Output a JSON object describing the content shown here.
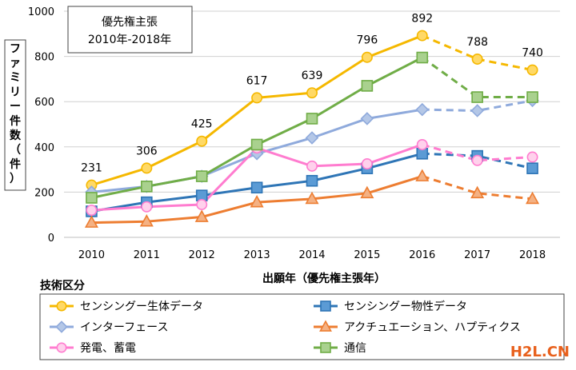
{
  "chart_data": {
    "type": "line",
    "title_box": [
      "優先権主張",
      "2010年-2018年"
    ],
    "ylabel": "ファミリー件数（件）",
    "xlabel": "出願年（優先権主張年）",
    "legend_title": "技術区分",
    "categories": [
      "2010",
      "2011",
      "2012",
      "2013",
      "2014",
      "2015",
      "2016",
      "2017",
      "2018"
    ],
    "ylim": [
      0,
      1000
    ],
    "yticks": [
      0,
      200,
      400,
      600,
      800,
      1000
    ],
    "grid": true,
    "dashed_after": "2016",
    "series": [
      {
        "name": "センシングー生体データ",
        "marker": "circle",
        "color": "#f5b800",
        "fill": "#ffd966",
        "values": [
          231,
          306,
          425,
          617,
          639,
          796,
          892,
          788,
          740
        ],
        "labels": [
          "231",
          "306",
          "425",
          "617",
          "639",
          "796",
          "892",
          "788",
          "740"
        ]
      },
      {
        "name": "センシングー物性データ",
        "marker": "square",
        "color": "#2e75b6",
        "fill": "#5b9bd5",
        "values": [
          115,
          155,
          185,
          220,
          250,
          305,
          370,
          360,
          305
        ]
      },
      {
        "name": "インターフェース",
        "marker": "diamond",
        "color": "#8faadc",
        "fill": "#b4c7e7",
        "values": [
          200,
          225,
          270,
          370,
          440,
          525,
          565,
          560,
          605
        ]
      },
      {
        "name": "アクチュエーション、ハプティクス",
        "marker": "triangle",
        "color": "#ed7d31",
        "fill": "#f4b183",
        "values": [
          65,
          70,
          90,
          155,
          170,
          195,
          270,
          195,
          170
        ]
      },
      {
        "name": "発電、蓄電",
        "marker": "circle",
        "color": "#ff7ccf",
        "fill": "#ffd1ec",
        "values": [
          120,
          135,
          145,
          395,
          315,
          325,
          410,
          340,
          355
        ]
      },
      {
        "name": "通信",
        "marker": "square",
        "color": "#70ad47",
        "fill": "#a9d18e",
        "values": [
          175,
          225,
          270,
          410,
          525,
          670,
          795,
          620,
          620
        ]
      }
    ],
    "legend_order": [
      0,
      1,
      2,
      3,
      4,
      5
    ]
  },
  "watermark": "H2L.CN"
}
